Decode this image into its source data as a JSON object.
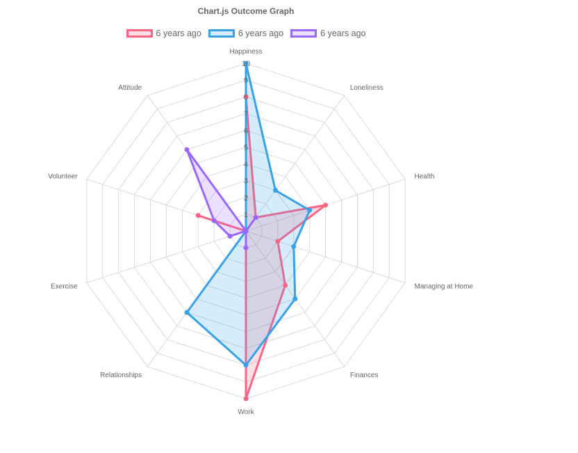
{
  "chart_data": {
    "type": "radar",
    "title": "Chart.js Outcome Graph",
    "categories": [
      "Happiness",
      "Loneliness",
      "Health",
      "Managing at Home",
      "Finances",
      "Work",
      "Relationships",
      "Exercise",
      "Volunteer",
      "Attitude"
    ],
    "r_range": [
      0,
      10
    ],
    "ticks": [
      "1",
      "2",
      "3",
      "4",
      "5",
      "6",
      "7",
      "8",
      "9",
      "10"
    ],
    "legend_position": "top",
    "grid": true,
    "series": [
      {
        "name": "6 years ago",
        "color": "#ff6384",
        "fill": "rgba(255,99,132,0.2)",
        "values": [
          8,
          1,
          5,
          2,
          4,
          10,
          0,
          0,
          3,
          0
        ]
      },
      {
        "name": "6 years ago",
        "color": "#36a2eb",
        "fill": "rgba(54,162,235,0.2)",
        "values": [
          10,
          3,
          4,
          3,
          5,
          8,
          6,
          0,
          0,
          0
        ]
      },
      {
        "name": "6 years ago",
        "color": "#9966ff",
        "fill": "rgba(153,102,255,0.2)",
        "values": [
          0,
          1,
          0,
          0,
          0,
          1,
          0,
          1,
          2,
          6
        ]
      }
    ]
  }
}
